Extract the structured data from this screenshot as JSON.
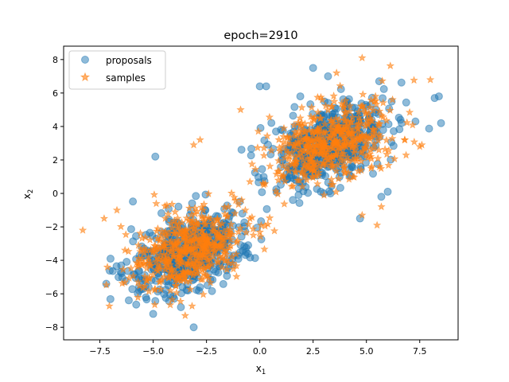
{
  "chart_data": {
    "type": "scatter",
    "title": "epoch=2910",
    "xlabel": "x",
    "xlabel_sub": "1",
    "ylabel": "x",
    "ylabel_sub": "2",
    "xlim": [
      -9.2,
      9.3
    ],
    "ylim": [
      -8.75,
      8.8
    ],
    "xticks": [
      -7.5,
      -5.0,
      -2.5,
      0.0,
      2.5,
      5.0,
      7.5
    ],
    "xtick_labels": [
      "−7.5",
      "−5.0",
      "−2.5",
      "0.0",
      "2.5",
      "5.0",
      "7.5"
    ],
    "yticks": [
      -8,
      -6,
      -4,
      -2,
      0,
      2,
      4,
      6,
      8
    ],
    "ytick_labels": [
      "−8",
      "−6",
      "−4",
      "−2",
      "0",
      "2",
      "4",
      "6",
      "8"
    ],
    "legend": {
      "position": "upper-left"
    },
    "series": [
      {
        "name": "proposals",
        "marker": "circle",
        "color": "#1f77b4",
        "alpha": 0.5,
        "clusters": [
          {
            "center": [
              -3.4,
              -3.6
            ],
            "count": 500
          },
          {
            "center": [
              3.2,
              3.0
            ],
            "count": 500
          }
        ],
        "points": [
          [
            8.4,
            5.8
          ],
          [
            8.5,
            4.2
          ],
          [
            8.2,
            5.7
          ],
          [
            -7.2,
            -5.4
          ],
          [
            -7.0,
            -3.9
          ],
          [
            -3.1,
            -8.0
          ],
          [
            0.0,
            6.4
          ],
          [
            0.3,
            6.4
          ],
          [
            2.5,
            7.5
          ],
          [
            3.2,
            7.0
          ],
          [
            5.6,
            6.7
          ],
          [
            7.3,
            4.3
          ],
          [
            6.6,
            4.4
          ],
          [
            -4.9,
            2.2
          ],
          [
            -5.0,
            -7.2
          ],
          [
            -3.7,
            -6.8
          ],
          [
            1.9,
            5.8
          ],
          [
            6.0,
            0.1
          ],
          [
            5.7,
            -0.2
          ],
          [
            4.7,
            -1.5
          ]
        ]
      },
      {
        "name": "samples",
        "marker": "star",
        "color": "#ff7f0e",
        "alpha": 0.6,
        "clusters": [
          {
            "center": [
              -3.4,
              -3.5
            ],
            "count": 500
          },
          {
            "center": [
              3.3,
              3.0
            ],
            "count": 500
          }
        ],
        "points": [
          [
            -8.3,
            -2.2
          ],
          [
            4.8,
            8.1
          ],
          [
            7.6,
            2.9
          ],
          [
            7.5,
            2.8
          ],
          [
            -6.7,
            -1.0
          ],
          [
            -3.5,
            -7.3
          ],
          [
            -3.1,
            2.9
          ],
          [
            -2.8,
            3.2
          ],
          [
            4.8,
            -1.3
          ],
          [
            5.5,
            -1.9
          ],
          [
            3.6,
            7.2
          ],
          [
            -7.3,
            -1.5
          ],
          [
            -0.9,
            5.0
          ],
          [
            5.7,
            -0.8
          ],
          [
            6.8,
            3.2
          ]
        ]
      }
    ]
  }
}
